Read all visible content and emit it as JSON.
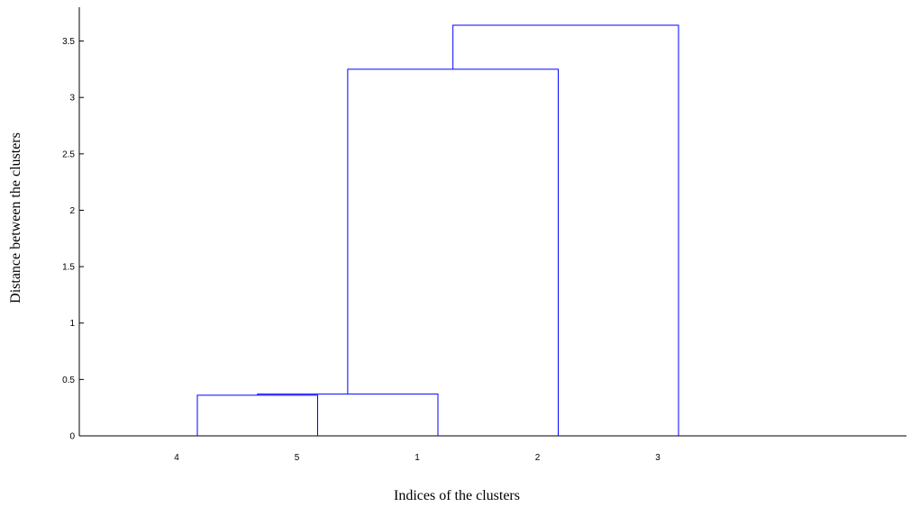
{
  "chart_data": {
    "type": "dendrogram",
    "title": "",
    "xlabel": "Indices of the clusters",
    "ylabel": "Distance between the clusters",
    "ylim": [
      0,
      3.8
    ],
    "yticks": [
      0,
      0.5,
      1,
      1.5,
      2,
      2.5,
      3,
      3.5
    ],
    "ytick_labels": [
      "0",
      "0.5",
      "1",
      "1.5",
      "2",
      "2.5",
      "3",
      "3.5"
    ],
    "leaf_order": [
      "4",
      "5",
      "1",
      "2",
      "3"
    ],
    "merges": [
      {
        "left": "4",
        "right": "5",
        "height": 0.36
      },
      {
        "left": "{4,5}",
        "right": "1",
        "height": 0.37
      },
      {
        "left": "{4,5,1}",
        "right": "2",
        "height": 3.25
      },
      {
        "left": "{4,5,1,2}",
        "right": "3",
        "height": 3.64
      }
    ],
    "link_color": "#0000ff",
    "grid": false
  }
}
